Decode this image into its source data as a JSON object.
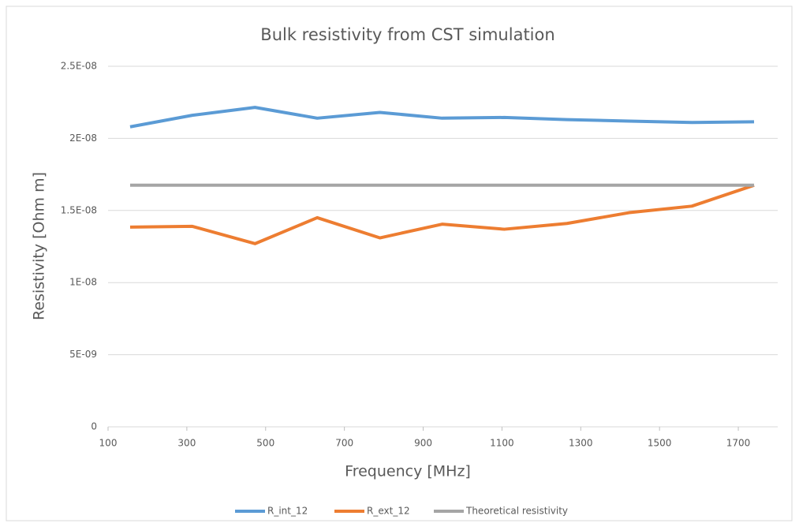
{
  "chart_data": {
    "type": "line",
    "title": "Bulk resistivity  from CST simulation",
    "x_label": "Frequency [MHz]",
    "y_label": "Resistivity [Ohm m]",
    "x": [
      156,
      314,
      473,
      631,
      790,
      948,
      1106,
      1265,
      1423,
      1582,
      1740
    ],
    "series": [
      {
        "name": "R_int_12",
        "color": "#5b9bd5",
        "values": [
          2.08e-08,
          2.16e-08,
          2.215e-08,
          2.14e-08,
          2.18e-08,
          2.14e-08,
          2.145e-08,
          2.13e-08,
          2.12e-08,
          2.11e-08,
          2.115e-08
        ]
      },
      {
        "name": "R_ext_12",
        "color": "#ed7d31",
        "values": [
          1.385e-08,
          1.39e-08,
          1.27e-08,
          1.45e-08,
          1.31e-08,
          1.405e-08,
          1.37e-08,
          1.41e-08,
          1.485e-08,
          1.53e-08,
          1.675e-08
        ]
      },
      {
        "name": "Theoretical resistivity",
        "color": "#a5a5a5",
        "values": [
          1.675e-08,
          1.675e-08,
          1.675e-08,
          1.675e-08,
          1.675e-08,
          1.675e-08,
          1.675e-08,
          1.675e-08,
          1.675e-08,
          1.675e-08,
          1.675e-08
        ]
      }
    ],
    "xlim": [
      100,
      1800
    ],
    "xticks": [
      100,
      300,
      500,
      700,
      900,
      1100,
      1300,
      1500,
      1700
    ],
    "ylim": [
      0,
      2.5e-08
    ],
    "yticks": [
      0,
      {
        "value": 5e-09,
        "label": "5E-09"
      },
      {
        "value": 1e-08,
        "label": "1E-08"
      },
      {
        "value": 1.5e-08,
        "label": "1.5E-08"
      },
      {
        "value": 2e-08,
        "label": "2E-08"
      },
      {
        "value": 2.5e-08,
        "label": "2.5E-08"
      }
    ],
    "grid": true,
    "legend": "bottom"
  }
}
